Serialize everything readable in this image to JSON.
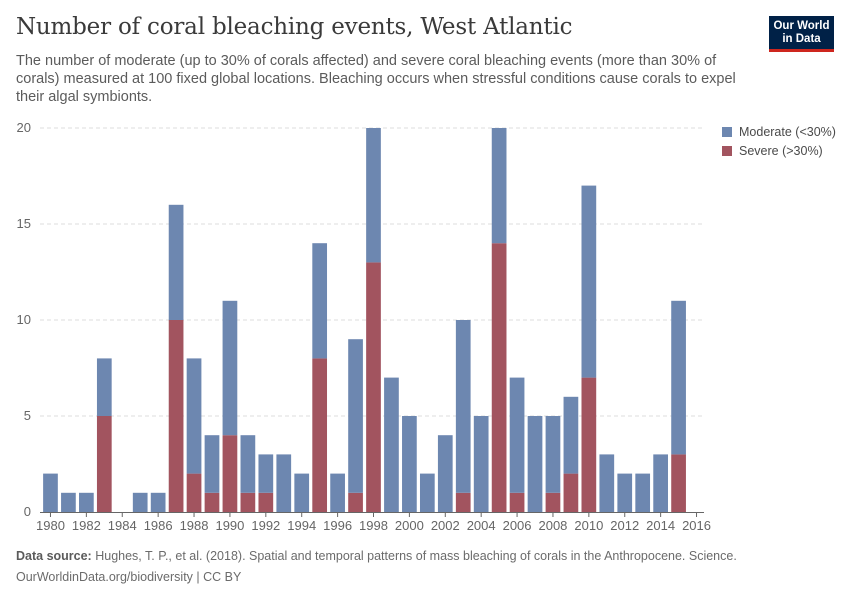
{
  "title": "Number of coral bleaching events, West Atlantic",
  "subtitle": "The number of moderate (up to 30% of corals affected) and severe coral bleaching events (more than 30% of corals) measured at 100 fixed global locations. Bleaching occurs when stressful conditions cause corals to expel their algal symbionts.",
  "logo": {
    "line1": "Our World",
    "line2": "in Data"
  },
  "footer": {
    "source_label": "Data source:",
    "source_text": "Hughes, T. P., et al. (2018). Spatial and temporal patterns of mass bleaching of corals in the Anthropocene. Science.",
    "link_text": "OurWorldinData.org/biodiversity",
    "license": "| CC BY"
  },
  "colors": {
    "moderate": "#6d87b0",
    "severe": "#a2545f",
    "grid": "#dcdcdc",
    "axis": "#666666"
  },
  "chart_data": {
    "type": "bar",
    "stacked": true,
    "x": [
      1980,
      1981,
      1982,
      1983,
      1984,
      1985,
      1986,
      1987,
      1988,
      1989,
      1990,
      1991,
      1992,
      1993,
      1994,
      1995,
      1996,
      1997,
      1998,
      1999,
      2000,
      2001,
      2002,
      2003,
      2004,
      2005,
      2006,
      2007,
      2008,
      2009,
      2010,
      2011,
      2012,
      2013,
      2014,
      2015
    ],
    "xticks": [
      "1980",
      "1982",
      "1984",
      "1986",
      "1988",
      "1990",
      "1992",
      "1994",
      "1996",
      "1998",
      "2000",
      "2002",
      "2004",
      "2006",
      "2008",
      "2010",
      "2012",
      "2014",
      "2016"
    ],
    "yticks": [
      "0",
      "5",
      "10",
      "15",
      "20"
    ],
    "ylim": [
      0,
      20
    ],
    "grid": true,
    "legend_position": "top-right",
    "series": [
      {
        "name": "Severe (>30%)",
        "color": "#a2545f",
        "values": [
          0,
          0,
          0,
          5,
          0,
          0,
          0,
          10,
          2,
          1,
          4,
          1,
          1,
          0,
          0,
          8,
          0,
          1,
          13,
          0,
          0,
          0,
          0,
          1,
          0,
          14,
          1,
          0,
          1,
          2,
          7,
          0,
          0,
          0,
          0,
          3
        ]
      },
      {
        "name": "Moderate (<30%)",
        "color": "#6d87b0",
        "values": [
          2,
          1,
          1,
          3,
          0,
          1,
          1,
          6,
          6,
          3,
          7,
          3,
          2,
          3,
          2,
          6,
          2,
          8,
          7,
          7,
          5,
          2,
          4,
          9,
          5,
          6,
          6,
          5,
          4,
          4,
          10,
          3,
          2,
          2,
          3,
          8
        ]
      }
    ],
    "legend": [
      "Moderate (<30%)",
      "Severe (>30%)"
    ]
  }
}
